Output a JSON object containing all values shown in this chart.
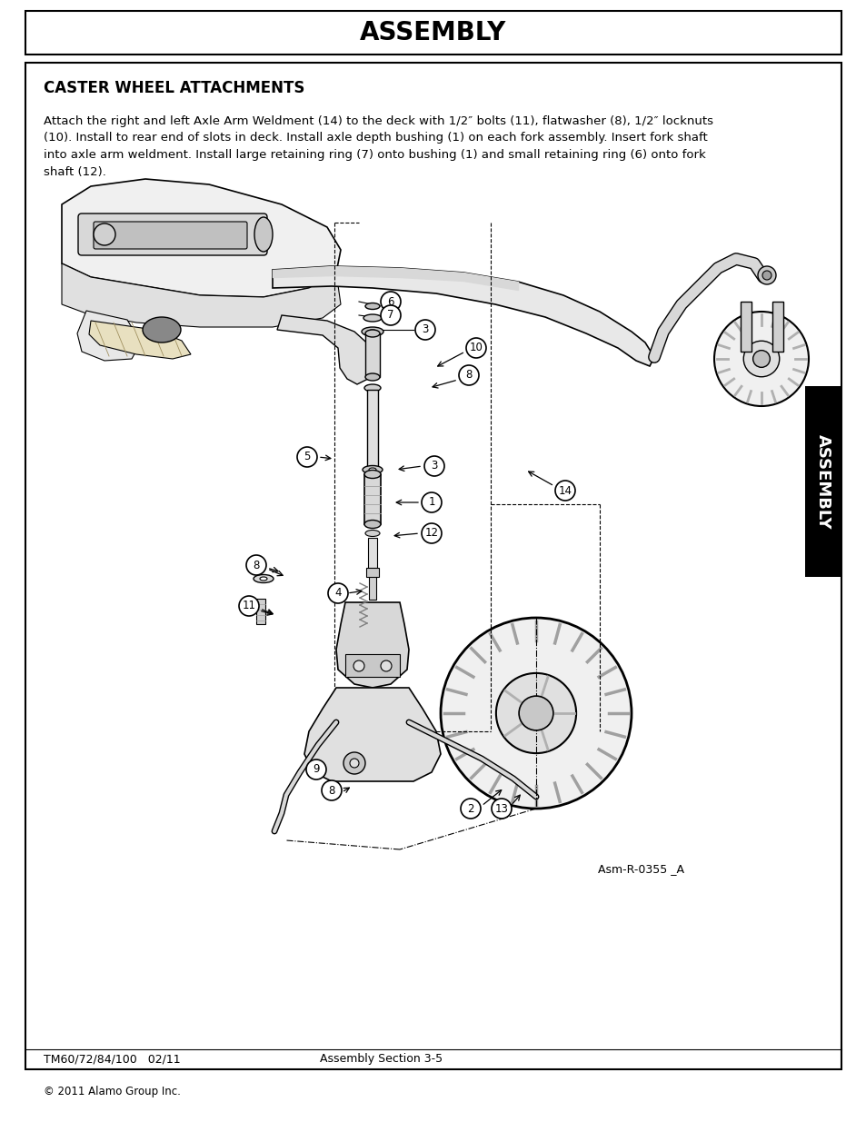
{
  "page_bg": "#ffffff",
  "title_header": "ASSEMBLY",
  "title_header_fontsize": 20,
  "section_title": "CASTER WHEEL ATTACHMENTS",
  "section_title_fontsize": 12,
  "body_text": "Attach the right and left Axle Arm Weldment (14) to the deck with 1/2″ bolts (11), flatwasher (8), 1/2″ locknuts\n(10). Install to rear end of slots in deck. Install axle depth bushing (1) on each fork assembly. Insert fork shaft\ninto axle arm weldment. Install large retaining ring (7) onto bushing (1) and small retaining ring (6) onto fork\nshaft (12).",
  "body_fontsize": 9.5,
  "diagram_label": "Asm-R-0355 _A",
  "footer_left": "TM60/72/84/100   02/11",
  "footer_center": "Assembly Section 3-5",
  "copyright": "© 2011 Alamo Group Inc.",
  "side_tab_text": "ASSEMBLY",
  "side_tab_bg": "#000000",
  "side_tab_fg": "#ffffff",
  "side_tab_fontsize": 13
}
